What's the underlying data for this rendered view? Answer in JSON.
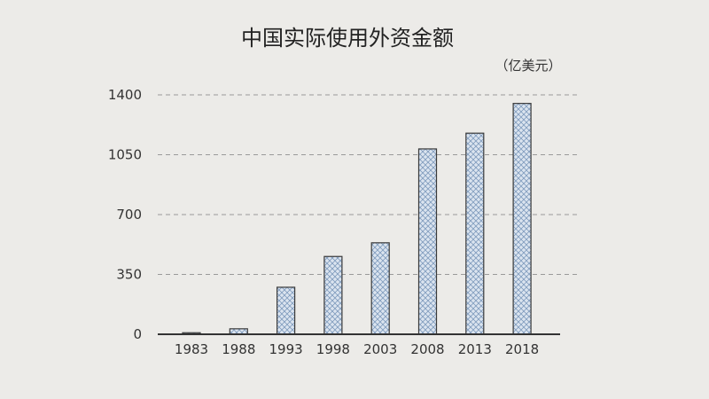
{
  "chart_data": {
    "type": "bar",
    "title": "中国实际使用外资金额",
    "unit_label": "（亿美元）",
    "categories": [
      "1983",
      "1988",
      "1993",
      "1998",
      "2003",
      "2008",
      "2013",
      "2018"
    ],
    "values": [
      9,
      32,
      275,
      455,
      535,
      1084,
      1176,
      1350
    ],
    "y_ticks": [
      "0",
      "350",
      "700",
      "1050",
      "1400"
    ],
    "ylim": [
      0,
      1400
    ],
    "grid": true,
    "bar_color": "#dbe4ef",
    "hatch_color": "#7f9bbd"
  }
}
